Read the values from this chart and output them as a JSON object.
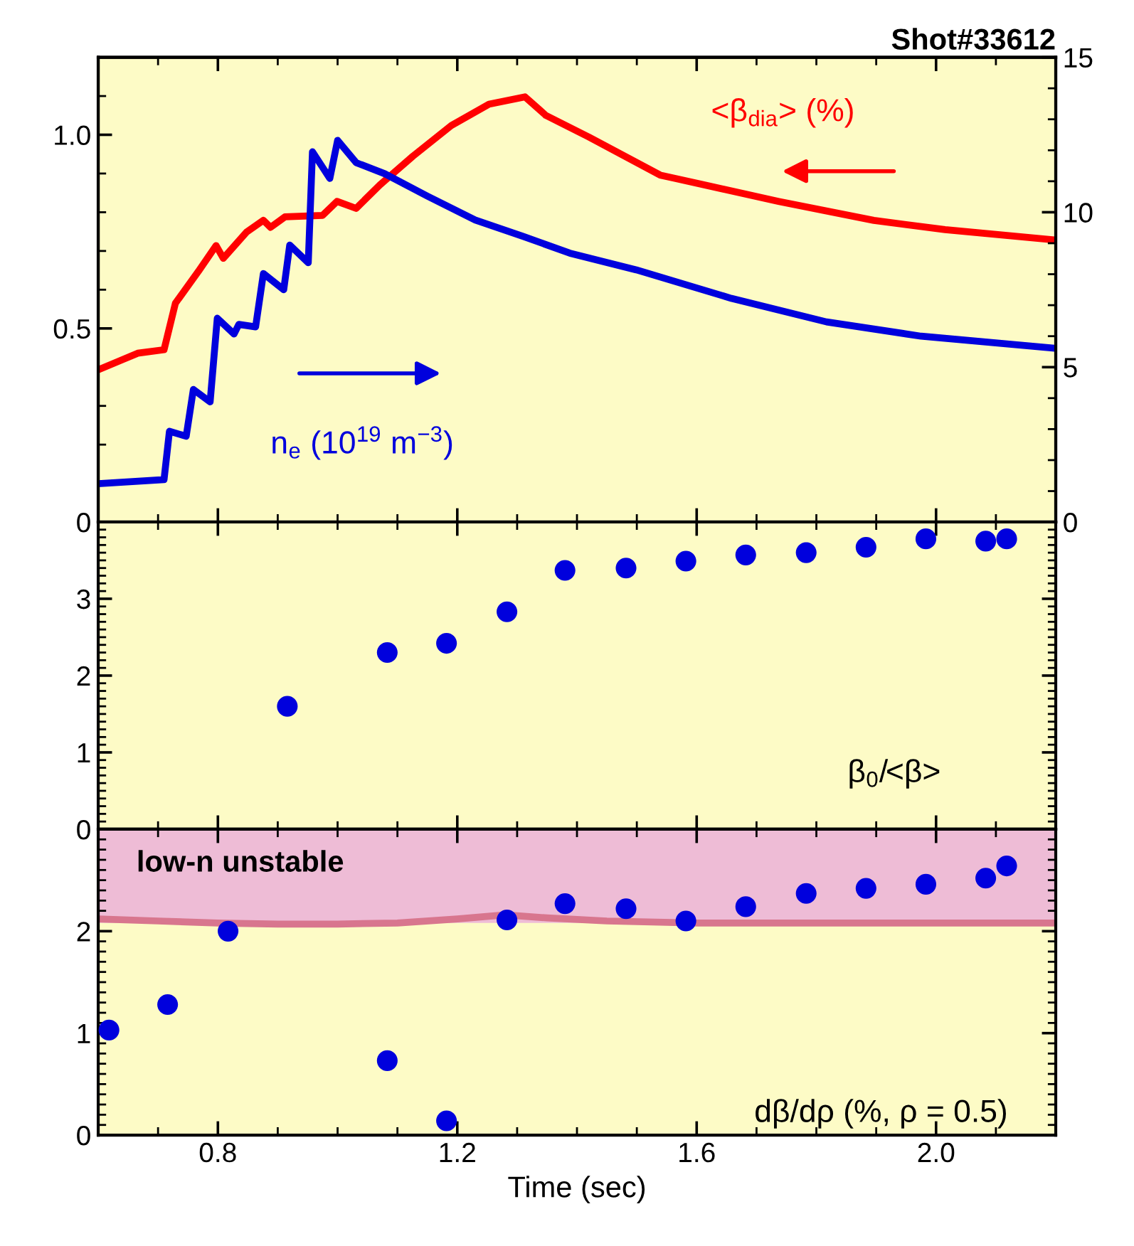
{
  "chart_data": [
    {
      "type": "line",
      "title": "Shot#33612",
      "xlim": [
        0.6,
        2.2
      ],
      "tick_labels": "y",
      "ylim": [
        0,
        1.2
      ],
      "yticks": [
        0,
        0.5,
        {
          "value": 1.0,
          "label": "1.0"
        }
      ],
      "y2lim": [
        0,
        15
      ],
      "y2ticks": [
        0,
        5,
        10,
        15
      ],
      "annotations": [
        "<β$_{dia}$> (%)",
        "n$_{e}$ (10$^{19}$ m$^{−3}$)"
      ],
      "series": [
        {
          "color": "#ff0000",
          "axis": "y",
          "x": [
            0.6,
            0.666,
            0.71,
            0.729,
            0.769,
            0.797,
            0.809,
            0.848,
            0.876,
            0.888,
            0.912,
            0.975,
            0.999,
            1.031,
            1.071,
            1.126,
            1.19,
            1.253,
            1.313,
            1.348,
            1.42,
            1.539,
            1.737,
            1.896,
            2.015,
            2.2
          ],
          "values": [
            0.393,
            0.436,
            0.445,
            0.565,
            0.651,
            0.714,
            0.681,
            0.749,
            0.779,
            0.761,
            0.788,
            0.792,
            0.828,
            0.81,
            0.871,
            0.945,
            1.024,
            1.079,
            1.098,
            1.05,
            0.994,
            0.896,
            0.828,
            0.779,
            0.755,
            0.728
          ]
        },
        {
          "color": "#0000dd",
          "axis": "y2",
          "x": [
            0.6,
            0.71,
            0.719,
            0.747,
            0.759,
            0.787,
            0.799,
            0.827,
            0.835,
            0.863,
            0.876,
            0.91,
            0.92,
            0.951,
            0.958,
            0.987,
            1.0,
            1.031,
            1.079,
            1.15,
            1.23,
            1.31,
            1.388,
            1.499,
            1.658,
            1.817,
            1.975,
            2.2
          ],
          "values": [
            1.24,
            1.37,
            2.93,
            2.77,
            4.28,
            3.88,
            6.58,
            6.07,
            6.38,
            6.3,
            8.02,
            7.5,
            8.94,
            8.37,
            11.95,
            11.09,
            12.32,
            11.6,
            11.24,
            10.52,
            9.75,
            9.22,
            8.68,
            8.14,
            7.22,
            6.46,
            6.0,
            5.61
          ]
        }
      ]
    },
    {
      "type": "scatter",
      "marker": "circle",
      "xlim": [
        0.6,
        2.2
      ],
      "tick_labels": "y",
      "ylim": [
        0,
        4
      ],
      "yticks": [
        0,
        1,
        2,
        3
      ],
      "annotations": [
        "β$_{0}$/<β>"
      ],
      "series": [
        {
          "color": "#0000dd",
          "x": [
            0.916,
            1.083,
            1.182,
            1.283,
            1.38,
            1.482,
            1.582,
            1.682,
            1.783,
            1.883,
            1.983,
            2.083,
            2.118
          ],
          "values": [
            1.6,
            2.3,
            2.42,
            2.83,
            3.37,
            3.4,
            3.49,
            3.57,
            3.6,
            3.67,
            3.78,
            3.75,
            3.78
          ]
        }
      ]
    },
    {
      "type": "scatter",
      "marker": "circle",
      "xlabel": "Time (sec)",
      "xlim": [
        0.6,
        2.2
      ],
      "xticks": [
        0.8,
        1.2,
        1.6,
        {
          "value": 2.0,
          "label": "2.0"
        }
      ],
      "ylim": [
        0,
        3
      ],
      "yticks": [
        0,
        1,
        2
      ],
      "annotations": [
        "dβ/dρ (%, ρ = 0.5)"
      ],
      "bands": [
        {
          "axis": "y",
          "from": 2.08,
          "to": 3,
          "label": "low-n unstable",
          "color": "#eebcd6"
        }
      ],
      "series": [
        {
          "type": "line",
          "marker": "none",
          "color": "#d8768e",
          "x": [
            0.6,
            0.7,
            0.8,
            0.9,
            1.0,
            1.1,
            1.2,
            1.28,
            1.35,
            1.45,
            1.6,
            2.0,
            2.2
          ],
          "values": [
            2.12,
            2.1,
            2.08,
            2.07,
            2.07,
            2.08,
            2.12,
            2.16,
            2.13,
            2.1,
            2.08,
            2.08,
            2.08
          ]
        },
        {
          "color": "#0000dd",
          "x": [
            0.618,
            0.716,
            0.817,
            1.083,
            1.182,
            1.283,
            1.38,
            1.482,
            1.582,
            1.682,
            1.783,
            1.883,
            1.983,
            2.083,
            2.118
          ],
          "values": [
            1.03,
            1.28,
            2.0,
            0.73,
            0.14,
            2.11,
            2.27,
            2.22,
            2.1,
            2.24,
            2.37,
            2.42,
            2.46,
            2.52,
            2.64
          ]
        }
      ]
    }
  ]
}
